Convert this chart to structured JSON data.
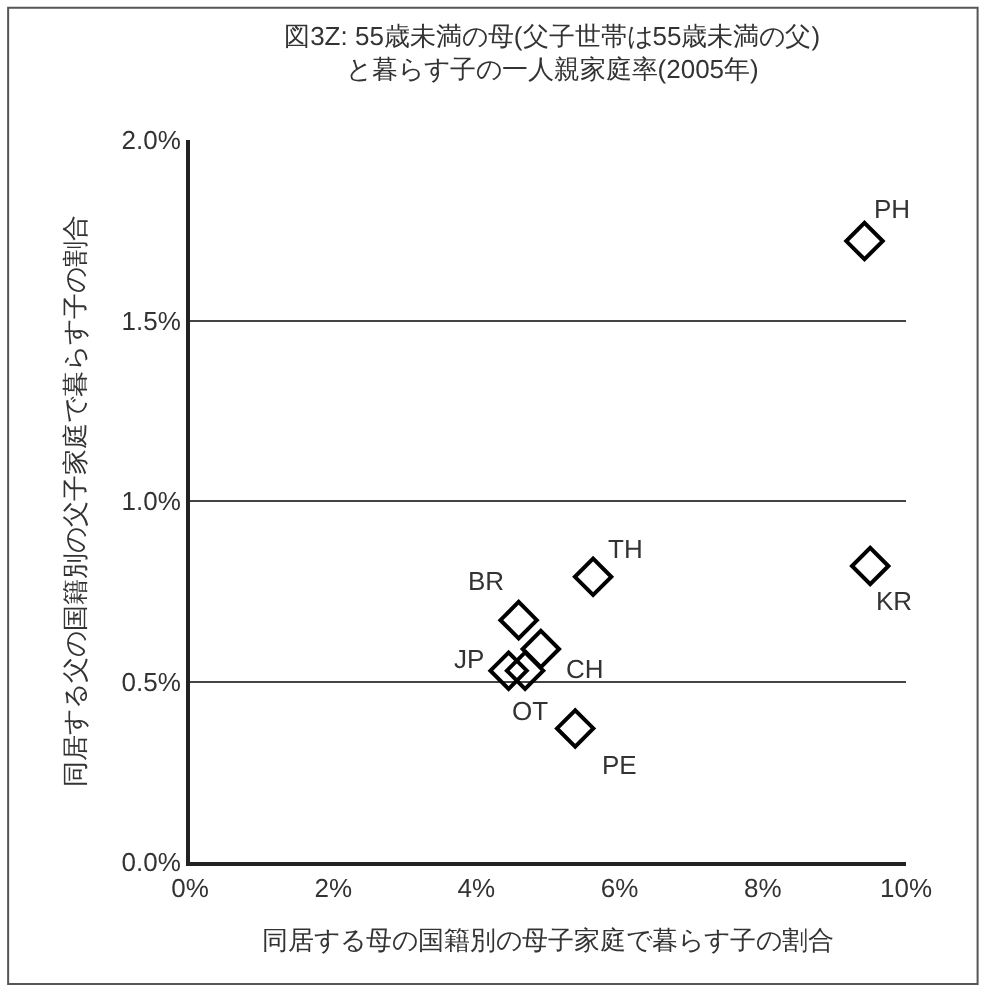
{
  "chart_data": {
    "type": "scatter",
    "title": "図3Z: 55歳未満の母(父子世帯は55歳未満の父)\nと暮らす子の一人親家庭率(2005年)",
    "xlabel": "同居する母の国籍別の母子家庭で暮らす子の割合",
    "ylabel": "同居する父の国籍別の父子家庭で暮らす子の割合",
    "x": [
      9.42,
      9.5,
      5.63,
      4.59,
      4.9,
      4.45,
      4.68,
      5.38
    ],
    "series": [
      {
        "color": "#000000",
        "values": [
          1.72,
          0.82,
          0.79,
          0.67,
          0.59,
          0.53,
          0.53,
          0.37
        ]
      }
    ],
    "annotations": [
      {
        "text": "PH",
        "x": 9.42,
        "y": 1.72
      },
      {
        "text": "KR",
        "x": 9.5,
        "y": 0.82
      },
      {
        "text": "TH",
        "x": 5.63,
        "y": 0.79
      },
      {
        "text": "BR",
        "x": 4.59,
        "y": 0.67
      },
      {
        "text": "CH",
        "x": 4.9,
        "y": 0.59
      },
      {
        "text": "JP",
        "x": 4.45,
        "y": 0.53
      },
      {
        "text": "OT",
        "x": 4.68,
        "y": 0.53
      },
      {
        "text": "PE",
        "x": 5.38,
        "y": 0.37
      }
    ],
    "xlim": [
      0,
      10
    ],
    "xticks": [
      {
        "value": 0,
        "label": "0%"
      },
      {
        "value": 2,
        "label": "2%"
      },
      {
        "value": 4,
        "label": "4%"
      },
      {
        "value": 6,
        "label": "6%"
      },
      {
        "value": 8,
        "label": "8%"
      },
      {
        "value": 10,
        "label": "10%"
      }
    ],
    "ylim": [
      0,
      2
    ],
    "yticks": [
      {
        "value": 0,
        "label": "0.0%"
      },
      {
        "value": 0.5,
        "label": "0.5%"
      },
      {
        "value": 1,
        "label": "1.0%"
      },
      {
        "value": 1.5,
        "label": "1.5%"
      },
      {
        "value": 2,
        "label": "2.0%"
      }
    ],
    "grid": "y",
    "marker": "diamond"
  }
}
